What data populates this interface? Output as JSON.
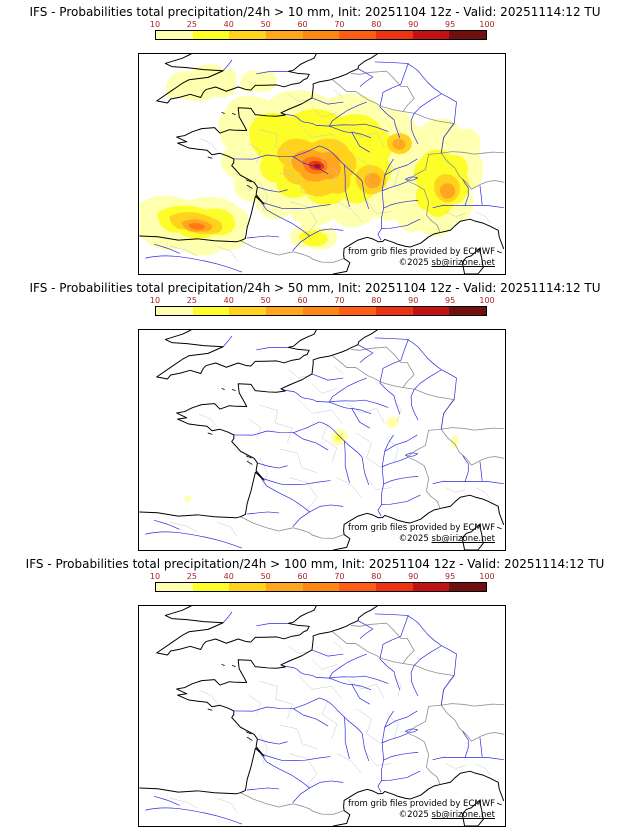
{
  "scale": {
    "labels": [
      "10",
      "25",
      "40",
      "50",
      "60",
      "70",
      "80",
      "90",
      "95",
      "100"
    ],
    "colors": [
      "#ffffb0",
      "#fdfd2a",
      "#ffd21e",
      "#ffa51e",
      "#ff8714",
      "#ff5f14",
      "#ea3414",
      "#c01414",
      "#701010"
    ],
    "label_color": "#aa2222"
  },
  "credits": {
    "provider": "from grib files provided by ECMWF",
    "copyright": "©2025",
    "email": "sb@irizone.net"
  },
  "panels": [
    {
      "threshold": "10 mm",
      "title": "IFS - Probabilities total precipitation/24h > 10 mm, Init: 20251104 12z - Valid: 20251114:12 TU"
    },
    {
      "threshold": "50 mm",
      "title": "IFS - Probabilities total precipitation/24h > 50 mm, Init: 20251104 12z - Valid: 20251114:12 TU"
    },
    {
      "threshold": "100 mm",
      "title": "IFS - Probabilities total precipitation/24h > 100 mm, Init: 20251104 12z - Valid: 20251114:12 TU"
    }
  ]
}
